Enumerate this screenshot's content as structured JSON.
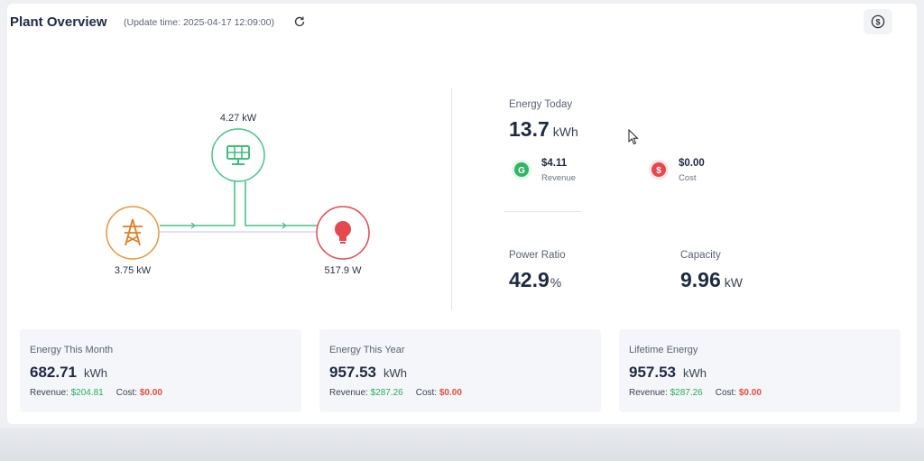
{
  "header": {
    "title": "Plant Overview",
    "update_text": "(Update time: 2025-04-17 12:09:00)"
  },
  "flow": {
    "solar_power": "4.27 kW",
    "grid_power": "3.75 kW",
    "load_power": "517.9 W",
    "colors": {
      "solar": "#3dbf7a",
      "grid": "#e8963a",
      "load": "#e5484d"
    }
  },
  "energy_today": {
    "label": "Energy Today",
    "value": "13.7",
    "unit": "kWh",
    "revenue_value": "$4.11",
    "revenue_label": "Revenue",
    "cost_value": "$0.00",
    "cost_label": "Cost"
  },
  "power_ratio": {
    "label": "Power Ratio",
    "value": "42.9",
    "unit": "%"
  },
  "capacity": {
    "label": "Capacity",
    "value": "9.96",
    "unit": "kW"
  },
  "stats": [
    {
      "label": "Energy This Month",
      "value": "682.71",
      "unit": "kWh",
      "revenue_label": "Revenue:",
      "revenue_value": "$204.81",
      "cost_label": "Cost:",
      "cost_value": "$0.00"
    },
    {
      "label": "Energy This Year",
      "value": "957.53",
      "unit": "kWh",
      "revenue_label": "Revenue:",
      "revenue_value": "$287.26",
      "cost_label": "Cost:",
      "cost_value": "$0.00"
    },
    {
      "label": "Lifetime Energy",
      "value": "957.53",
      "unit": "kWh",
      "revenue_label": "Revenue:",
      "revenue_value": "$287.26",
      "cost_label": "Cost:",
      "cost_value": "$0.00"
    }
  ],
  "icons": {
    "refresh": "refresh-icon",
    "currency": "dollar-circle-icon",
    "solar": "solar-panel-icon",
    "grid": "power-tower-icon",
    "load": "light-bulb-icon",
    "revenue": "revenue-coin-icon",
    "cost": "cost-coin-icon"
  }
}
